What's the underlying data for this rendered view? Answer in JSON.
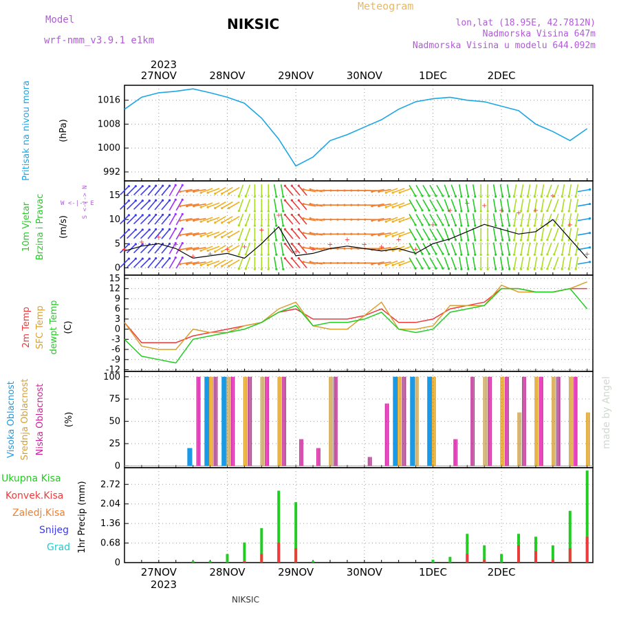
{
  "header": {
    "model_label": "Model",
    "model_name": "wrf-nmm_v3.9.1 e1km",
    "station": "NIKSIC",
    "meteogram_label": "Meteogram",
    "lonlat": "lon,lat (18.95E, 42.7812N)",
    "altitude": "Nadmorska Visina 647m",
    "model_altitude": "Nadmorska Visina u modelu 644.092m",
    "footer_station": "NIKSIC",
    "credit": "made by Angel"
  },
  "colors": {
    "pressure": "#1aa6e6",
    "temp2m": "#ee3a3a",
    "sfc_temp": "#d8a030",
    "dewpt": "#22cc22",
    "high_cloud": "#1a9ae6",
    "mid_cloud": "#d8a030",
    "low_cloud": "#cc2299",
    "precip_total": "#22cc22",
    "precip_conv": "#ee3a3a",
    "precip_frz": "#f08030",
    "snow": "#3a3af0",
    "hail": "#22cccc",
    "header_purple": "#b05ad8",
    "header_orange": "#e8b860"
  },
  "chart_data": [
    {
      "type": "line",
      "name": "pressure",
      "ylabel_1": "Pritisak na nivou mora",
      "ylabel_2": "(hPa)",
      "yticks": [
        992,
        1000,
        1008,
        1016
      ],
      "ylim": [
        989,
        1021
      ],
      "x_day_labels": [
        "27NOV",
        "28NOV",
        "29NOV",
        "30NOV",
        "1DEC",
        "2DEC"
      ],
      "top_year_label": "2023",
      "x_hours": [
        0,
        6,
        12,
        18,
        24,
        30,
        36,
        42,
        48,
        54,
        60,
        66,
        72,
        78,
        84,
        90,
        96,
        102,
        108,
        114,
        120,
        126,
        132,
        138,
        144,
        150,
        156,
        162
      ],
      "values": [
        1013.0,
        1017.0,
        1018.5,
        1019.0,
        1019.8,
        1018.5,
        1017.0,
        1015.0,
        1010.0,
        1003.0,
        994.0,
        997.0,
        1002.5,
        1004.5,
        1007.0,
        1009.5,
        1013.0,
        1015.5,
        1016.5,
        1017.0,
        1016.0,
        1015.5,
        1014.0,
        1012.5,
        1008.0,
        1005.5,
        1002.5,
        1006.5
      ]
    },
    {
      "type": "line",
      "name": "wind",
      "ylabel_1": "10m Vjetar",
      "ylabel_2": "Brzina i Pravac",
      "ylabel_3": "(m/s)",
      "compass": "W <-|-> E",
      "compass_v": "S <-|-> N",
      "yticks": [
        0,
        5,
        10,
        15
      ],
      "ylim": [
        -1.5,
        18
      ],
      "x_hours": [
        0,
        6,
        12,
        18,
        24,
        30,
        36,
        42,
        48,
        54,
        60,
        66,
        72,
        78,
        84,
        90,
        96,
        102,
        108,
        114,
        120,
        126,
        132,
        138,
        144,
        150,
        156,
        162
      ],
      "speed": [
        3.5,
        4.5,
        5.0,
        4.0,
        2.0,
        2.5,
        3.0,
        2.0,
        5.0,
        8.5,
        2.5,
        3.0,
        4.0,
        4.5,
        4.0,
        3.5,
        4.0,
        3.0,
        5.0,
        6.0,
        7.5,
        9.0,
        8.0,
        7.0,
        7.5,
        10.0,
        6.0,
        2.0
      ],
      "gust": [
        4.0,
        5.5,
        6.5,
        5.0,
        2.5,
        3.0,
        4.0,
        4.5,
        8.0,
        11.0,
        3.5,
        4.0,
        5.0,
        6.0,
        5.0,
        4.5,
        6.0,
        4.0,
        9.0,
        12.0,
        13.5,
        13.0,
        12.0,
        11.5,
        12.0,
        15.0,
        9.0,
        3.0
      ],
      "barb_direction_deg": [
        45,
        45,
        40,
        30,
        260,
        250,
        240,
        200,
        180,
        170,
        320,
        280,
        270,
        270,
        270,
        260,
        250,
        150,
        150,
        160,
        170,
        180,
        170,
        190,
        190,
        200,
        190,
        80
      ]
    },
    {
      "type": "line",
      "name": "temperature",
      "ylabel_1": "2m Temp",
      "ylabel_2": "SFC Temp",
      "ylabel_3": "dewpt Temp",
      "ylabel_4": "(C)",
      "yticks": [
        -12,
        -9,
        -6,
        -3,
        0,
        3,
        6,
        9,
        12,
        15
      ],
      "ylim": [
        -12.5,
        16
      ],
      "x_hours": [
        0,
        6,
        12,
        18,
        24,
        30,
        36,
        42,
        48,
        54,
        60,
        66,
        72,
        78,
        84,
        90,
        96,
        102,
        108,
        114,
        120,
        126,
        132,
        138,
        144,
        150,
        156,
        162
      ],
      "series": [
        {
          "name": "2m Temp",
          "values": [
            2,
            -4,
            -4,
            -4,
            -2,
            -1,
            0,
            1,
            2,
            5,
            6,
            3,
            3,
            3,
            4,
            6,
            2,
            2,
            3,
            6,
            7,
            8,
            12,
            12,
            11,
            11,
            12,
            12
          ]
        },
        {
          "name": "SFC Temp",
          "values": [
            2,
            -5,
            -6,
            -6,
            0,
            -1,
            -1,
            1,
            2,
            6,
            8,
            1,
            0,
            0,
            4,
            8,
            0,
            0,
            1,
            7,
            7,
            7,
            13,
            11,
            11,
            11,
            12,
            14
          ]
        },
        {
          "name": "dewpt Temp",
          "values": [
            -3,
            -8,
            -9,
            -10,
            -3,
            -2,
            -1,
            0,
            2,
            5,
            7,
            1,
            2,
            2,
            3,
            5,
            0,
            -1,
            0,
            5,
            6,
            7,
            12,
            12,
            11,
            11,
            12,
            6
          ]
        }
      ]
    },
    {
      "type": "bar",
      "name": "cloud",
      "ylabel_1": "Visoka Oblacnost",
      "ylabel_2": "Srednja Oblacnost",
      "ylabel_3": "Niska Oblacnost",
      "ylabel_4": "(%)",
      "yticks": [
        0,
        25,
        50,
        75,
        100
      ],
      "ylim": [
        -2,
        106
      ],
      "x_hours": [
        0,
        6,
        12,
        18,
        24,
        30,
        36,
        42,
        48,
        54,
        60,
        66,
        72,
        78,
        84,
        90,
        96,
        102,
        108,
        114,
        120,
        126,
        132,
        138,
        144,
        150,
        156,
        162
      ],
      "series": [
        {
          "name": "Visoka Oblacnost",
          "values": [
            0,
            0,
            0,
            0,
            20,
            100,
            100,
            0,
            0,
            0,
            0,
            0,
            0,
            0,
            0,
            0,
            100,
            100,
            100,
            0,
            0,
            0,
            0,
            0,
            0,
            0,
            0,
            0
          ]
        },
        {
          "name": "Srednja Oblacnost",
          "values": [
            0,
            0,
            0,
            0,
            0,
            100,
            100,
            100,
            100,
            100,
            0,
            0,
            100,
            0,
            0,
            0,
            100,
            100,
            100,
            0,
            0,
            100,
            100,
            60,
            100,
            100,
            100,
            60
          ]
        },
        {
          "name": "Niska Oblacnost",
          "values": [
            0,
            0,
            0,
            0,
            100,
            100,
            100,
            100,
            100,
            100,
            30,
            20,
            100,
            0,
            10,
            70,
            100,
            0,
            0,
            30,
            100,
            100,
            100,
            100,
            100,
            100,
            100,
            0
          ]
        }
      ]
    },
    {
      "type": "bar",
      "name": "precip",
      "ylabel_1": "1hr Precip (mm)",
      "legend": [
        "Ukupna Kisa",
        "Konvek.Kisa",
        "Zaledj.Kisa",
        "Snijeg",
        "Grad"
      ],
      "yticks": [
        0,
        0.68,
        1.36,
        2.04,
        2.72
      ],
      "ylim": [
        0,
        3.3
      ],
      "x_hours": [
        0,
        6,
        12,
        18,
        24,
        30,
        36,
        42,
        48,
        54,
        60,
        66,
        72,
        78,
        84,
        90,
        96,
        102,
        108,
        114,
        120,
        126,
        132,
        138,
        144,
        150,
        156,
        162
      ],
      "series": [
        {
          "name": "Ukupna Kisa",
          "values": [
            0,
            0,
            0,
            0,
            0.05,
            0.05,
            0.3,
            0.7,
            1.2,
            2.5,
            2.1,
            0.05,
            0,
            0,
            0,
            0,
            0,
            0,
            0.1,
            0.2,
            1.0,
            0.6,
            0.3,
            1.0,
            0.9,
            0.6,
            1.8,
            3.2
          ]
        },
        {
          "name": "Konvek.Kisa",
          "values": [
            0,
            0,
            0,
            0,
            0,
            0,
            0,
            0.05,
            0.3,
            0.7,
            0.5,
            0,
            0,
            0,
            0,
            0,
            0,
            0,
            0,
            0,
            0.3,
            0.1,
            0,
            0.6,
            0.4,
            0.1,
            0.5,
            0.9
          ]
        }
      ]
    }
  ]
}
